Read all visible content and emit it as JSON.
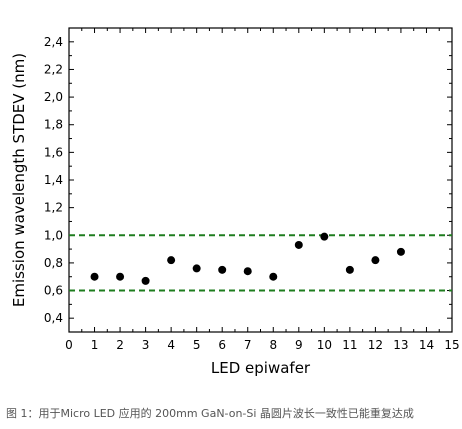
{
  "caption": "图 1：用于Micro LED 应用的 200mm GaN-on-Si 晶圆片波长一致性已能重复达成",
  "chart_data": {
    "type": "scatter",
    "xlabel": "LED epiwafer",
    "ylabel": "Emission wavelength STDEV (nm)",
    "xlim": [
      0,
      15
    ],
    "ylim": [
      0.3,
      2.5
    ],
    "x_ticks": [
      "0",
      "1",
      "2",
      "3",
      "4",
      "5",
      "6",
      "7",
      "8",
      "9",
      "10",
      "11",
      "12",
      "13",
      "14",
      "15"
    ],
    "y_ticks": [
      {
        "value": 0.4,
        "label": "0,4"
      },
      {
        "value": 0.6,
        "label": "0,6"
      },
      {
        "value": 0.8,
        "label": "0,8"
      },
      {
        "value": 1.0,
        "label": "1,0"
      },
      {
        "value": 1.2,
        "label": "1,2"
      },
      {
        "value": 1.4,
        "label": "1,4"
      },
      {
        "value": 1.6,
        "label": "1,6"
      },
      {
        "value": 1.8,
        "label": "1,8"
      },
      {
        "value": 2.0,
        "label": "2,0"
      },
      {
        "value": 2.2,
        "label": "2,2"
      },
      {
        "value": 2.4,
        "label": "2,4"
      }
    ],
    "points": [
      {
        "x": 1,
        "y": 0.7
      },
      {
        "x": 2,
        "y": 0.7
      },
      {
        "x": 3,
        "y": 0.67
      },
      {
        "x": 4,
        "y": 0.82
      },
      {
        "x": 5,
        "y": 0.76
      },
      {
        "x": 6,
        "y": 0.75
      },
      {
        "x": 7,
        "y": 0.74
      },
      {
        "x": 8,
        "y": 0.7
      },
      {
        "x": 9,
        "y": 0.93
      },
      {
        "x": 10,
        "y": 0.99
      },
      {
        "x": 11,
        "y": 0.75
      },
      {
        "x": 12,
        "y": 0.82
      },
      {
        "x": 13,
        "y": 0.88
      }
    ],
    "reference_lines": [
      {
        "y": 1.0,
        "style": "dashed",
        "color": "#1e7d1e"
      },
      {
        "y": 0.6,
        "style": "dashed",
        "color": "#1e7d1e"
      }
    ],
    "marker_color": "#000000",
    "grid": false
  }
}
